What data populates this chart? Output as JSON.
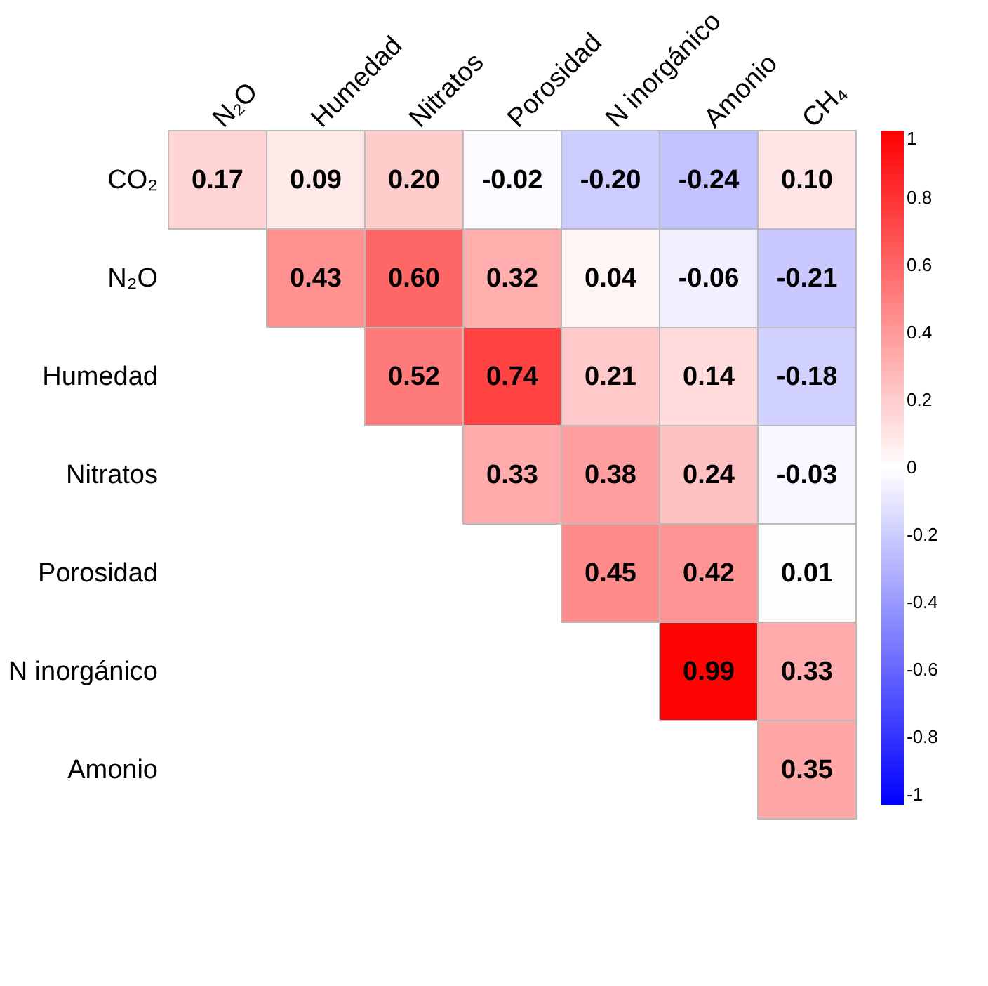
{
  "chart_data": {
    "type": "heatmap",
    "categories": [
      "N₂O",
      "Humedad",
      "Nitratos",
      "Porosidad",
      "N inorgánico",
      "Amonio",
      "CH₄"
    ],
    "y_categories": [
      "CO₂",
      "N₂O",
      "Humedad",
      "Nitratos",
      "Porosidad",
      "N inorgánico",
      "Amonio"
    ],
    "cells": [
      [
        0.17,
        0.09,
        0.2,
        -0.02,
        -0.2,
        -0.24,
        0.1
      ],
      [
        null,
        0.43,
        0.6,
        0.32,
        0.04,
        -0.06,
        -0.21
      ],
      [
        null,
        null,
        0.52,
        0.74,
        0.21,
        0.14,
        -0.18
      ],
      [
        null,
        null,
        null,
        0.33,
        0.38,
        0.24,
        -0.03
      ],
      [
        null,
        null,
        null,
        null,
        0.45,
        0.42,
        0.01
      ],
      [
        null,
        null,
        null,
        null,
        null,
        0.99,
        0.33
      ],
      [
        null,
        null,
        null,
        null,
        null,
        null,
        0.35
      ]
    ],
    "cell_labels": [
      [
        "0.17",
        "0.09",
        "0.20",
        "-0.02",
        "-0.20",
        "-0.24",
        "0.10"
      ],
      [
        null,
        "0.43",
        "0.60",
        "0.32",
        "0.04",
        "-0.06",
        "-0.21"
      ],
      [
        null,
        null,
        "0.52",
        "0.74",
        "0.21",
        "0.14",
        "-0.18"
      ],
      [
        null,
        null,
        null,
        "0.33",
        "0.38",
        "0.24",
        "-0.03"
      ],
      [
        null,
        null,
        null,
        null,
        "0.45",
        "0.42",
        "0.01"
      ],
      [
        null,
        null,
        null,
        null,
        null,
        "0.99",
        "0.33"
      ],
      [
        null,
        null,
        null,
        null,
        null,
        null,
        "0.35"
      ]
    ],
    "clim": [
      -1,
      1
    ],
    "cticks": [
      -1,
      -0.8,
      -0.6,
      -0.4,
      -0.2,
      0,
      0.2,
      0.4,
      0.6,
      0.8,
      1
    ]
  }
}
